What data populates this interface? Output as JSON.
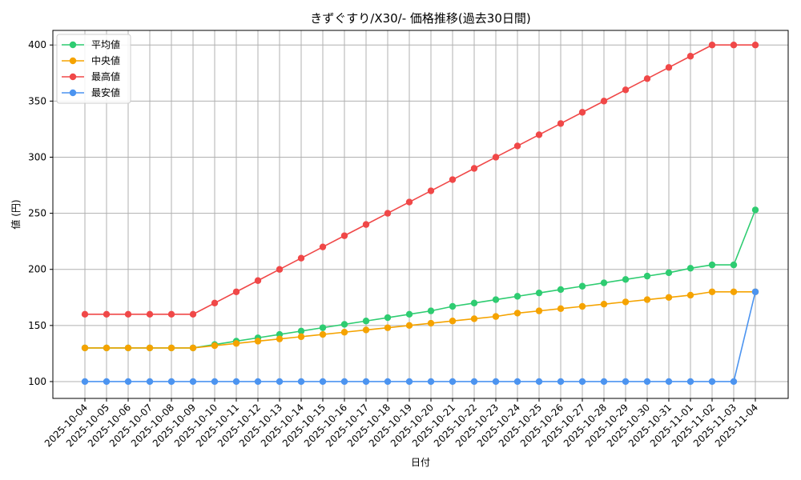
{
  "chart_data": {
    "type": "line",
    "title": "きずぐすり/X30/- 価格推移(過去30日間)",
    "xlabel": "日付",
    "ylabel": "値 (円)",
    "ylim": [
      85,
      413
    ],
    "yticks": [
      100,
      150,
      200,
      250,
      300,
      350,
      400
    ],
    "grid": true,
    "legend_position": "top-left",
    "categories": [
      "2025-10-04",
      "2025-10-05",
      "2025-10-06",
      "2025-10-07",
      "2025-10-08",
      "2025-10-09",
      "2025-10-10",
      "2025-10-11",
      "2025-10-12",
      "2025-10-13",
      "2025-10-14",
      "2025-10-15",
      "2025-10-16",
      "2025-10-17",
      "2025-10-18",
      "2025-10-19",
      "2025-10-20",
      "2025-10-21",
      "2025-10-22",
      "2025-10-23",
      "2025-10-24",
      "2025-10-25",
      "2025-10-26",
      "2025-10-27",
      "2025-10-28",
      "2025-10-29",
      "2025-10-30",
      "2025-10-31",
      "2025-11-01",
      "2025-11-02",
      "2025-11-03",
      "2025-11-04"
    ],
    "series": [
      {
        "name": "平均値",
        "color": "#2ecc71",
        "values": [
          130,
          130,
          130,
          130,
          130,
          130,
          133,
          136,
          139,
          142,
          145,
          148,
          151,
          154,
          157,
          160,
          163,
          167,
          170,
          173,
          176,
          179,
          182,
          185,
          188,
          191,
          194,
          197,
          201,
          204,
          204,
          253
        ]
      },
      {
        "name": "中央値",
        "color": "#f5a300",
        "values": [
          130,
          130,
          130,
          130,
          130,
          130,
          132,
          134,
          136,
          138,
          140,
          142,
          144,
          146,
          148,
          150,
          152,
          154,
          156,
          158,
          161,
          163,
          165,
          167,
          169,
          171,
          173,
          175,
          177,
          180,
          180,
          180
        ]
      },
      {
        "name": "最高値",
        "color": "#f04848",
        "values": [
          160,
          160,
          160,
          160,
          160,
          160,
          170,
          180,
          190,
          200,
          210,
          220,
          230,
          240,
          250,
          260,
          270,
          280,
          290,
          300,
          310,
          320,
          330,
          340,
          350,
          360,
          370,
          380,
          390,
          400,
          400,
          400
        ]
      },
      {
        "name": "最安値",
        "color": "#4c94f0",
        "values": [
          100,
          100,
          100,
          100,
          100,
          100,
          100,
          100,
          100,
          100,
          100,
          100,
          100,
          100,
          100,
          100,
          100,
          100,
          100,
          100,
          100,
          100,
          100,
          100,
          100,
          100,
          100,
          100,
          100,
          100,
          100,
          180
        ]
      }
    ]
  }
}
